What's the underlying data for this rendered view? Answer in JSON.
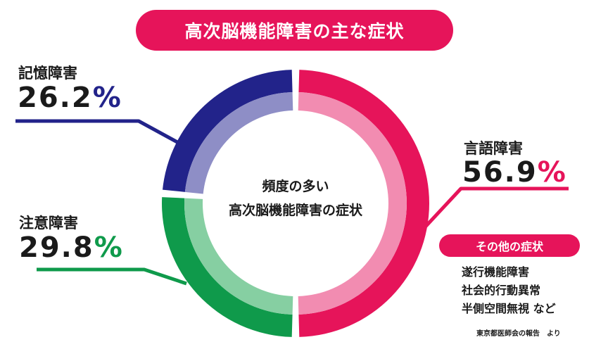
{
  "title": "高次脳機能障害の主な症状",
  "colors": {
    "accent": "#E6145A",
    "memory": "#22238A",
    "memory_light": "#8E8EC6",
    "attention": "#0F9A4B",
    "attention_light": "#86CFA2",
    "language": "#E6145A",
    "language_light": "#F28CB1"
  },
  "chart_data": {
    "type": "pie",
    "title": "高次脳機能障害の主な症状",
    "center_label": [
      "頻度の多い",
      "高次脳機能障害の症状"
    ],
    "slices": [
      {
        "name": "言語障害",
        "value": 56.9,
        "display": "56.9",
        "unit": "%"
      },
      {
        "name": "注意障害",
        "value": 29.8,
        "display": "29.8",
        "unit": "%"
      },
      {
        "name": "記憶障害",
        "value": 26.2,
        "display": "26.2",
        "unit": "%"
      }
    ]
  },
  "other": {
    "heading": "その他の症状",
    "items": [
      "遂行機能障害",
      "社会的行動異常",
      "半側空間無視 など"
    ]
  },
  "source": "東京都医師会の報告　より"
}
